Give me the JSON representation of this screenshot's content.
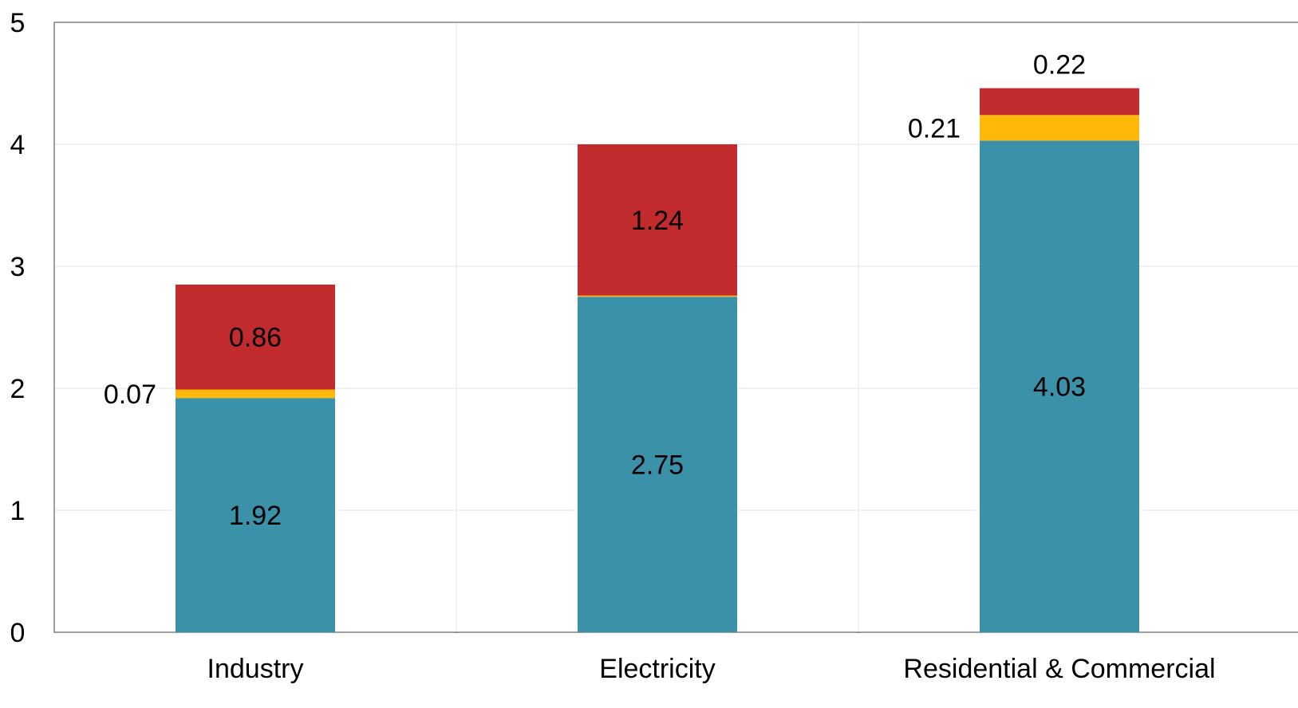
{
  "chart_data": {
    "type": "bar",
    "stacked": true,
    "categories": [
      "Industry",
      "Electricity",
      "Residential & Commercial"
    ],
    "series": [
      {
        "values": [
          1.92,
          2.75,
          4.03
        ],
        "color": "#3A91A8"
      },
      {
        "values": [
          0.07,
          0.01,
          0.21
        ],
        "color": "#FFB80A"
      },
      {
        "values": [
          0.86,
          1.24,
          0.22
        ],
        "color": "#C12B2E"
      }
    ],
    "data_labels": [
      [
        "1.92",
        "2.75",
        "4.03"
      ],
      [
        "0.07",
        "",
        "0.21"
      ],
      [
        "0.86",
        "1.24",
        "0.22"
      ]
    ],
    "ylim": [
      0,
      5
    ],
    "yticks": [
      "0",
      "1",
      "2",
      "3",
      "4",
      "5"
    ],
    "grid": true,
    "legend": false
  }
}
